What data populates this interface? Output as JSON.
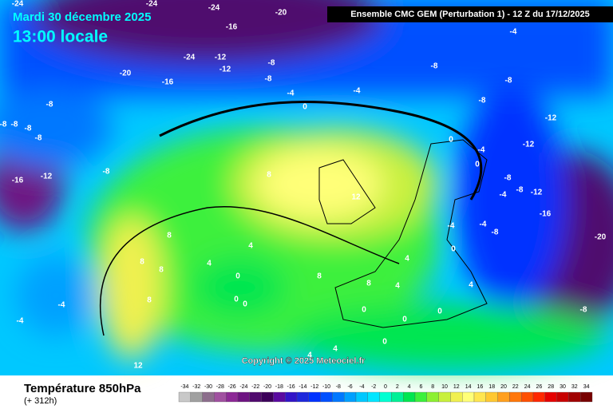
{
  "header": {
    "date": "Mardi 30 décembre 2025",
    "time": "13:00 locale",
    "model": "Ensemble CMC GEM  (Perturbation 1)  -  12 Z du 17/12/2025"
  },
  "footer": {
    "title": "Température 850hPa",
    "lead": "(+ 312h)",
    "copyright": "Copyright © 2025 Meteociel.fr"
  },
  "legend": {
    "values": [
      -34,
      -32,
      -30,
      -28,
      -26,
      -24,
      -22,
      -20,
      -18,
      -16,
      -14,
      -12,
      -10,
      -8,
      -6,
      -4,
      -2,
      0,
      2,
      4,
      6,
      8,
      10,
      12,
      14,
      16,
      18,
      20,
      22,
      24,
      26,
      28,
      30,
      32,
      34
    ],
    "colors": [
      "#c8c8c8",
      "#a0a0a0",
      "#8c6e8c",
      "#a050a0",
      "#8c2896",
      "#6e1482",
      "#500a6e",
      "#3c005a",
      "#5a0aa0",
      "#3214c8",
      "#1e28dc",
      "#0032ff",
      "#0050ff",
      "#0078ff",
      "#00a0ff",
      "#00c8ff",
      "#00e6ff",
      "#00ffd2",
      "#00f096",
      "#00e650",
      "#3cf03c",
      "#8cf032",
      "#c8f03c",
      "#f0f050",
      "#ffff78",
      "#ffe650",
      "#ffc832",
      "#ffa01e",
      "#ff780a",
      "#ff5000",
      "#ff2800",
      "#e60000",
      "#c80000",
      "#a00000",
      "#780000"
    ]
  },
  "contour_labels": [
    -24,
    -24,
    -24,
    -20,
    -16,
    -24,
    -12,
    -12,
    -8,
    -20,
    -16,
    -8,
    -8,
    -8,
    -4,
    -4,
    -4,
    0,
    -8,
    -8,
    -8,
    -8,
    -8,
    -8,
    -12,
    -16,
    -8,
    -12,
    -12,
    0,
    0,
    -4,
    -8,
    -8,
    -12,
    -4,
    -16,
    -20,
    -4,
    -4,
    -8,
    0,
    4,
    8,
    12,
    8,
    8,
    8,
    4,
    4,
    0,
    0,
    0,
    8,
    -4,
    -4,
    8,
    8,
    4,
    4,
    0,
    0,
    0,
    -8,
    0,
    4,
    4,
    12
  ]
}
